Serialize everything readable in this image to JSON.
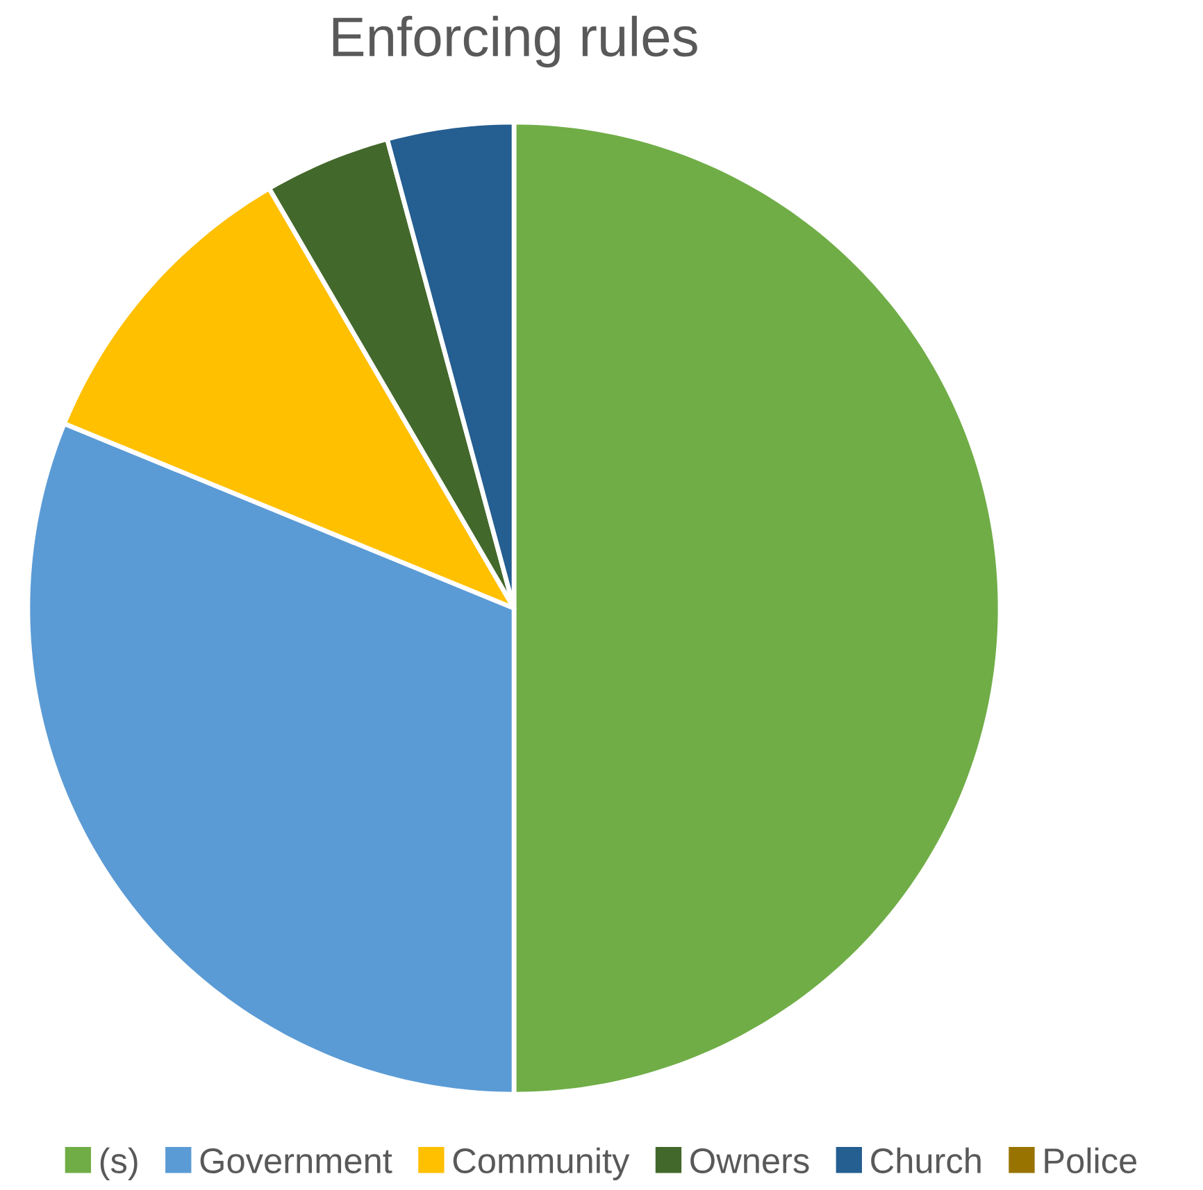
{
  "chart_data": {
    "type": "pie",
    "title": "Enforcing rules",
    "categories": [
      "(s)",
      "Government",
      "Community",
      "Owners",
      "Church",
      "Police"
    ],
    "values": [
      50,
      31.2,
      10.4,
      4.2,
      4.2,
      0
    ],
    "colors": [
      "#70ad47",
      "#5b9bd5",
      "#ffc000",
      "#43682b",
      "#255e91",
      "#997300"
    ],
    "legend": "bottom"
  }
}
